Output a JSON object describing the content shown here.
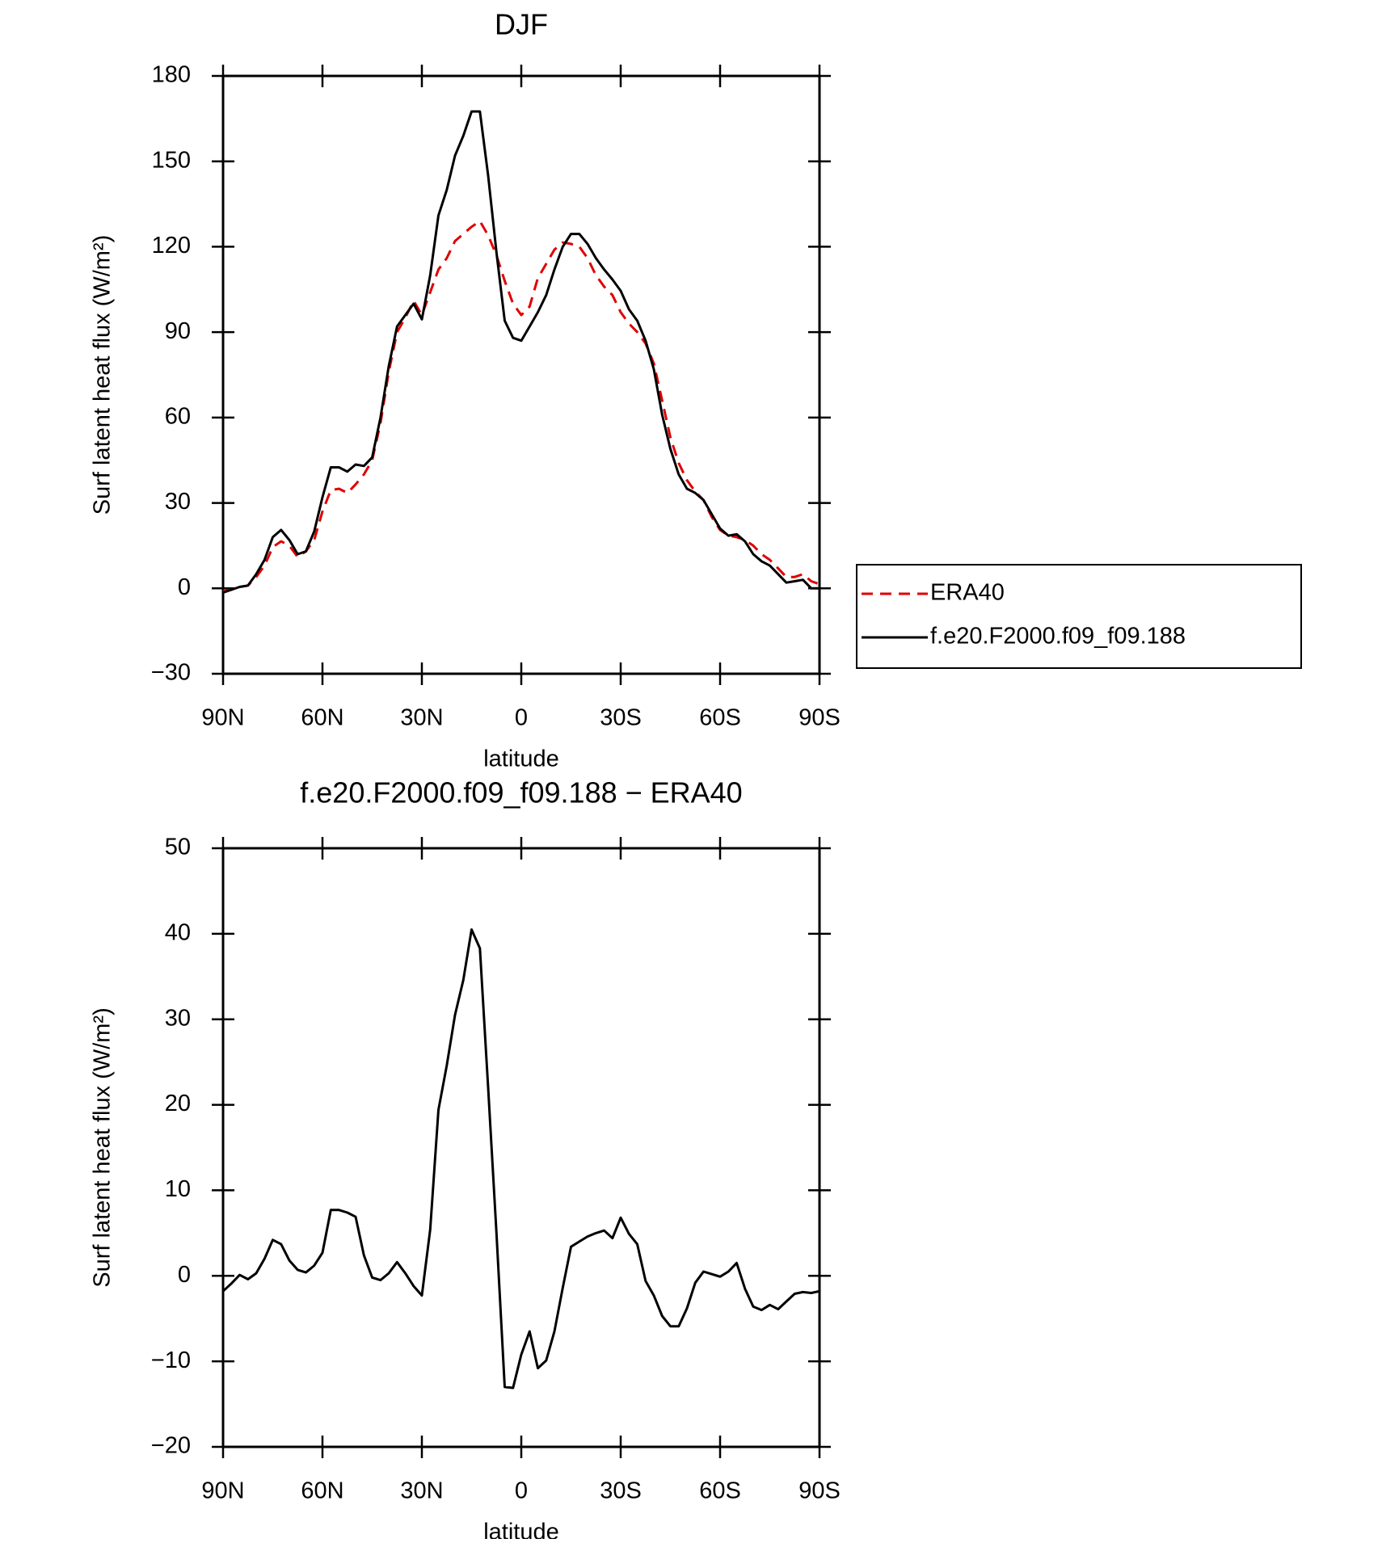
{
  "chart_data": [
    {
      "type": "line",
      "title": "DJF",
      "xlabel": "latitude",
      "ylabel": "Surf latent heat flux (W/m²)",
      "x": [
        90,
        87.5,
        85,
        82.5,
        80,
        77.5,
        75,
        72.5,
        70,
        67.5,
        65,
        62.5,
        60,
        57.5,
        55,
        52.5,
        50,
        47.5,
        45,
        42.5,
        40,
        37.5,
        35,
        32.5,
        30,
        27.5,
        25,
        22.5,
        20,
        17.5,
        15,
        12.5,
        10,
        7.5,
        5,
        2.5,
        0,
        -2.5,
        -5,
        -7.5,
        -10,
        -12.5,
        -15,
        -17.5,
        -20,
        -22.5,
        -25,
        -27.5,
        -30,
        -32.5,
        -35,
        -37.5,
        -40,
        -42.5,
        -45,
        -47.5,
        -50,
        -52.5,
        -55,
        -57.5,
        -60,
        -62.5,
        -65,
        -67.5,
        -70,
        -72.5,
        -75,
        -77.5,
        -80,
        -82.5,
        -85,
        -87.5,
        -90
      ],
      "series": [
        {
          "name": "ERA40",
          "color": "#e00000",
          "style": "dashed",
          "values": [
            -1,
            -0.5,
            0.5,
            1,
            4,
            8,
            14.5,
            16.5,
            15,
            11,
            13,
            17,
            27,
            34.5,
            35,
            33.5,
            36.5,
            40,
            45,
            58,
            76,
            90,
            95,
            101,
            96,
            104,
            112,
            116,
            122,
            124.5,
            127,
            129,
            124,
            117,
            108,
            100,
            96,
            99,
            109,
            114,
            119,
            121.5,
            121,
            120,
            116,
            110,
            106,
            103,
            97,
            93,
            90,
            86,
            79,
            66,
            53,
            44,
            38,
            34,
            31,
            25,
            20.5,
            18.5,
            18,
            17,
            15,
            12,
            10,
            7,
            4,
            4,
            5,
            2.5,
            1.5
          ]
        },
        {
          "name": "f.e20.F2000.f09_f09.188",
          "color": "#000000",
          "style": "solid",
          "values": [
            -1.5,
            -0.5,
            0.5,
            1,
            5,
            10,
            18,
            20.5,
            17,
            12,
            13,
            20,
            32,
            42.5,
            42.5,
            41,
            43.5,
            43,
            46,
            60,
            78,
            92,
            96,
            100,
            94.5,
            110,
            131,
            140,
            152,
            159,
            167.5,
            167.5,
            145,
            118,
            94,
            88,
            87,
            92,
            97,
            103,
            112,
            120,
            124.5,
            124.5,
            121,
            116,
            112,
            108.5,
            104.5,
            98,
            94,
            87,
            77,
            61,
            49,
            40,
            35,
            33.5,
            31,
            26,
            21,
            18.5,
            19,
            16.5,
            12,
            9.5,
            8,
            5,
            2,
            2.5,
            3,
            0,
            0
          ]
        }
      ],
      "xlim": [
        90,
        -90
      ],
      "xticks": [
        {
          "value": 90,
          "label": "90N"
        },
        {
          "value": 60,
          "label": "60N"
        },
        {
          "value": 30,
          "label": "30N"
        },
        0,
        {
          "value": -30,
          "label": "30S"
        },
        {
          "value": -60,
          "label": "60S"
        },
        {
          "value": -90,
          "label": "90S"
        }
      ],
      "ylim": [
        -30,
        180
      ],
      "yticks": [
        {
          "value": -30,
          "label": "−30"
        },
        0,
        30,
        60,
        90,
        120,
        150,
        180
      ],
      "legend": "right"
    },
    {
      "type": "line",
      "title": "f.e20.F2000.f09_f09.188 − ERA40",
      "xlabel": "latitude",
      "ylabel": "Surf latent heat flux (W/m²)",
      "x": [
        90,
        87.5,
        85,
        82.5,
        80,
        77.5,
        75,
        72.5,
        70,
        67.5,
        65,
        62.5,
        60,
        57.5,
        55,
        52.5,
        50,
        47.5,
        45,
        42.5,
        40,
        37.5,
        35,
        32.5,
        30,
        27.5,
        25,
        22.5,
        20,
        17.5,
        15,
        12.5,
        10,
        7.5,
        5,
        2.5,
        0,
        -2.5,
        -5,
        -7.5,
        -10,
        -12.5,
        -15,
        -17.5,
        -20,
        -22.5,
        -25,
        -27.5,
        -30,
        -32.5,
        -35,
        -37.5,
        -40,
        -42.5,
        -45,
        -47.5,
        -50,
        -52.5,
        -55,
        -57.5,
        -60,
        -62.5,
        -65,
        -67.5,
        -70,
        -72.5,
        -75,
        -77.5,
        -80,
        -82.5,
        -85,
        -87.5,
        -90
      ],
      "color": "#000000",
      "values": [
        -1.8,
        -0.9,
        0.1,
        -0.4,
        0.3,
        2,
        4.2,
        3.7,
        1.8,
        0.7,
        0.4,
        1.2,
        2.7,
        7.7,
        7.7,
        7.4,
        6.9,
        2.4,
        -0.2,
        -0.5,
        0.3,
        1.6,
        0.3,
        -1.2,
        -2.3,
        5.4,
        19.4,
        24.6,
        30.5,
        34.6,
        40.5,
        38.3,
        22,
        5,
        -13,
        -13.1,
        -9.2,
        -6.5,
        -10.8,
        -9.9,
        -6.5,
        -1.4,
        3.4,
        4,
        4.6,
        5,
        5.3,
        4.4,
        6.8,
        4.9,
        3.7,
        -0.6,
        -2.3,
        -4.7,
        -5.9,
        -5.9,
        -3.8,
        -0.8,
        0.5,
        0.2,
        -0.1,
        0.5,
        1.5,
        -1.5,
        -3.6,
        -4,
        -3.4,
        -3.9,
        -3,
        -2.1,
        -1.9,
        -2,
        -1.8
      ],
      "xlim": [
        90,
        -90
      ],
      "xticks": [
        {
          "value": 90,
          "label": "90N"
        },
        {
          "value": 60,
          "label": "60N"
        },
        {
          "value": 30,
          "label": "30N"
        },
        0,
        {
          "value": -30,
          "label": "30S"
        },
        {
          "value": -60,
          "label": "60S"
        },
        {
          "value": -90,
          "label": "90S"
        }
      ],
      "ylim": [
        -20,
        50
      ],
      "yticks": [
        {
          "value": -20,
          "label": "−20"
        },
        {
          "value": -10,
          "label": "−10"
        },
        0,
        10,
        20,
        30,
        40,
        50
      ]
    }
  ]
}
